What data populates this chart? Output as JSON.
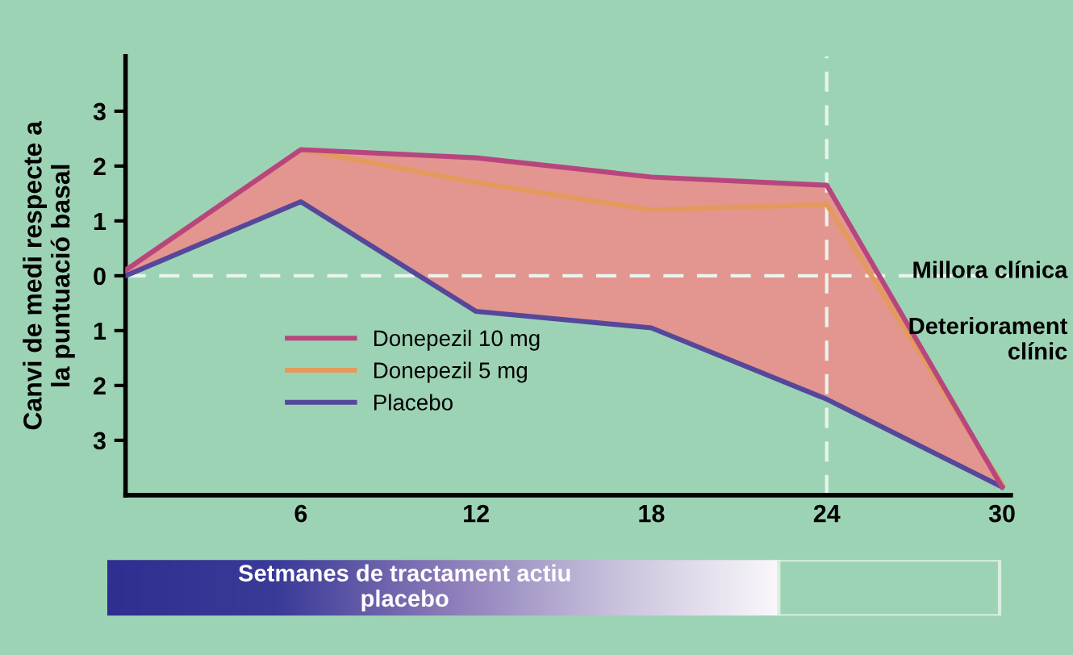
{
  "chart_data": {
    "type": "line",
    "x": [
      0,
      6,
      12,
      18,
      24,
      30
    ],
    "series": [
      {
        "name": "Donepezil 10 mg",
        "color": "#b8467e",
        "values": [
          0.1,
          2.3,
          2.15,
          1.8,
          1.65,
          -3.85
        ],
        "lower": [
          0,
          1.35,
          -0.65,
          -0.95,
          -2.25,
          -3.85
        ],
        "upper": [
          0.1,
          2.3,
          2.15,
          1.8,
          1.65,
          -3.85
        ]
      },
      {
        "name": "Donepezil 5 mg",
        "color": "#e39a5c",
        "values": [
          0.1,
          2.3,
          1.7,
          1.2,
          1.3,
          -3.8
        ]
      },
      {
        "name": "Placebo",
        "color": "#55489a",
        "values": [
          0,
          1.35,
          -0.65,
          -0.95,
          -2.25,
          -3.85
        ]
      }
    ],
    "xlim": [
      0,
      30.3
    ],
    "ylim": [
      -4,
      4
    ],
    "xticks": [
      6,
      12,
      18,
      24,
      30
    ],
    "yticks": [
      {
        "value": -3,
        "label": "3"
      },
      {
        "value": -2,
        "label": "2"
      },
      {
        "value": -1,
        "label": "1"
      },
      0,
      1,
      2,
      3
    ],
    "ylabel": "Canvi de medi respecte a\nla puntuació basal",
    "xlabel": "Setmanes de tractament actiu\nplacebo",
    "ref_lines": [
      {
        "axis": "y",
        "value": 0,
        "color": "#e8f4ec",
        "line_style": "dashed"
      },
      {
        "axis": "x",
        "value": 24,
        "color": "#e8f4ec",
        "line_style": "dashed"
      }
    ],
    "annotations": [
      "Millora clínica",
      "Deteriorament\nclínic"
    ],
    "legend": "center left",
    "grid": false,
    "marker": "none",
    "line_style": "solid"
  }
}
